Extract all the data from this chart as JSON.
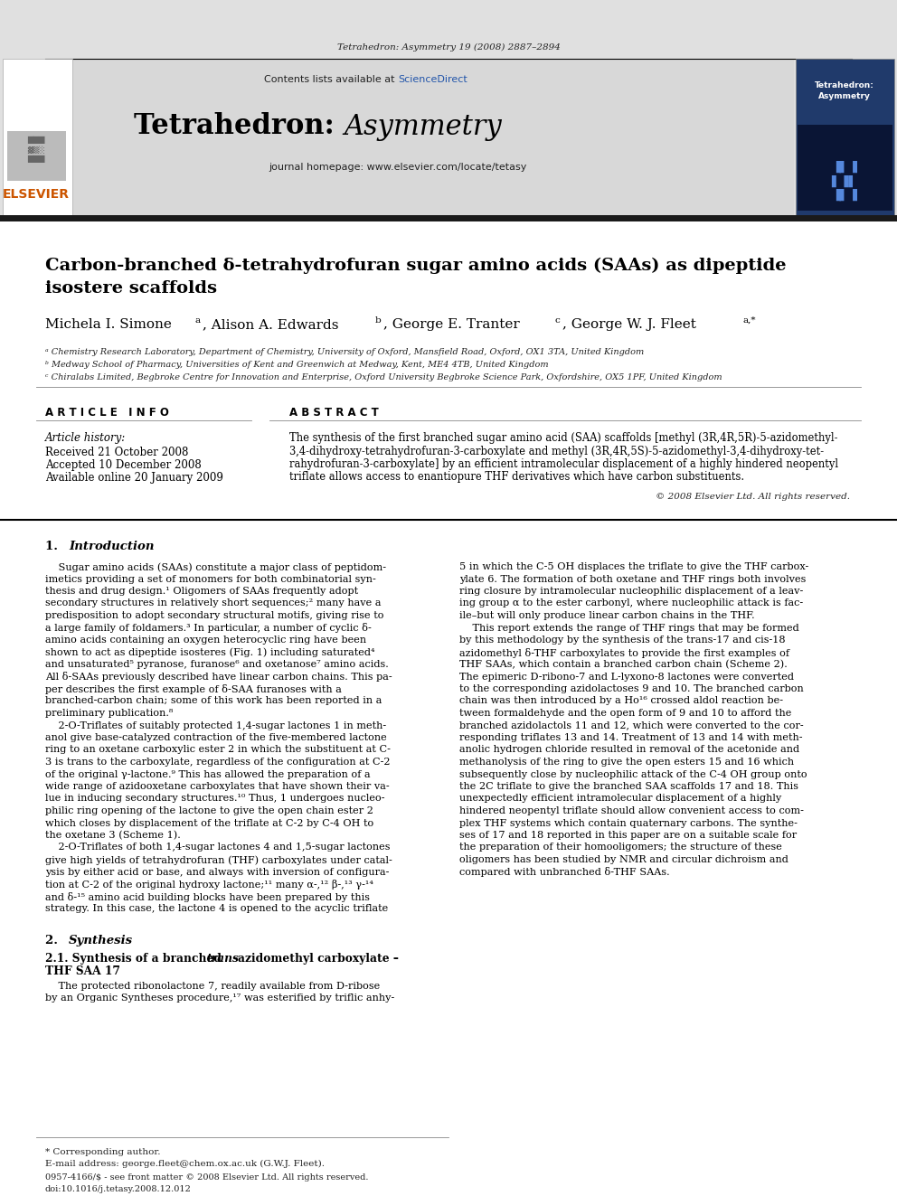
{
  "page_bg": "#ffffff",
  "header_issue": "Tetrahedron: Asymmetry 19 (2008) 2887–2894",
  "contents_text": "Contents lists available at ",
  "sciencedirect_text": "ScienceDirect",
  "journal_homepage": "journal homepage: www.elsevier.com/locate/tetasy",
  "article_title_line1": "Carbon-branched δ-tetrahydrofuran sugar amino acids (SAAs) as dipeptide",
  "article_title_line2": "isostere scaffolds",
  "affil_a": "ᵃ Chemistry Research Laboratory, Department of Chemistry, University of Oxford, Mansfield Road, Oxford, OX1 3TA, United Kingdom",
  "affil_b": "ᵇ Medway School of Pharmacy, Universities of Kent and Greenwich at Medway, Kent, ME4 4TB, United Kingdom",
  "affil_c": "ᶜ Chiralabs Limited, Begbroke Centre for Innovation and Enterprise, Oxford University Begbroke Science Park, Oxfordshire, OX5 1PF, United Kingdom",
  "article_info_label": "A R T I C L E   I N F O",
  "abstract_label": "A B S T R A C T",
  "article_history_label": "Article history:",
  "received": "Received 21 October 2008",
  "accepted": "Accepted 10 December 2008",
  "available": "Available online 20 January 2009",
  "copyright": "© 2008 Elsevier Ltd. All rights reserved.",
  "footer_issn": "0957-4166/$ - see front matter © 2008 Elsevier Ltd. All rights reserved.",
  "footer_doi": "doi:10.1016/j.tetasy.2008.12.012",
  "footnote_star": "* Corresponding author.",
  "footnote_email": "E-mail address: george.fleet@chem.ox.ac.uk (G.W.J. Fleet).",
  "colors": {
    "black": "#000000",
    "dark_gray": "#222222",
    "light_gray": "#e8e8e8",
    "header_bg": "#e0e0e0",
    "blue_link": "#2255aa",
    "header_bar_bg": "#d8d8d8",
    "thick_bar": "#1a1a1a",
    "elsevier_text_color": "#cc5500"
  },
  "left_col_lines": [
    "    Sugar amino acids (SAAs) constitute a major class of peptidom-",
    "imetics providing a set of monomers for both combinatorial syn-",
    "thesis and drug design.¹ Oligomers of SAAs frequently adopt",
    "secondary structures in relatively short sequences;² many have a",
    "predisposition to adopt secondary structural motifs, giving rise to",
    "a large family of foldamers.³ In particular, a number of cyclic δ-",
    "amino acids containing an oxygen heterocyclic ring have been",
    "shown to act as dipeptide isosteres (Fig. 1) including saturated⁴",
    "and unsaturated⁵ pyranose, furanose⁶ and oxetanose⁷ amino acids.",
    "All δ-SAAs previously described have linear carbon chains. This pa-",
    "per describes the first example of δ-SAA furanoses with a",
    "branched-carbon chain; some of this work has been reported in a",
    "preliminary publication.⁸",
    "    2-O-Triflates of suitably protected 1,4-sugar lactones 1 in meth-",
    "anol give base-catalyzed contraction of the five-membered lactone",
    "ring to an oxetane carboxylic ester 2 in which the substituent at C-",
    "3 is trans to the carboxylate, regardless of the configuration at C-2",
    "of the original γ-lactone.⁹ This has allowed the preparation of a",
    "wide range of azidooxetane carboxylates that have shown their va-",
    "lue in inducing secondary structures.¹⁰ Thus, 1 undergoes nucleo-"
  ],
  "left_col_lines2": [
    "philic ring opening of the lactone to give the open chain ester 2",
    "which closes by displacement of the triflate at C-2 by C-4 OH to",
    "the oxetane 3 (Scheme 1).",
    "    2-O-Triflates of both 1,4-sugar lactones 4 and 1,5-sugar lactones",
    "give high yields of tetrahydrofuran (THF) carboxylates under catal-",
    "ysis by either acid or base, and always with inversion of configura-",
    "tion at C-2 of the original hydroxy lactone;¹¹ many α-,¹² β-,¹³ γ-¹⁴",
    "and δ-¹⁵ amino acid building blocks have been prepared by this",
    "strategy. In this case, the lactone 4 is opened to the acyclic triflate"
  ],
  "right_col_lines": [
    "5 in which the C-5 OH displaces the triflate to give the THF carbox-",
    "ylate 6. The formation of both oxetane and THF rings both involves",
    "ring closure by intramolecular nucleophilic displacement of a leav-",
    "ing group α to the ester carbonyl, where nucleophilic attack is fac-",
    "ile–but will only produce linear carbon chains in the THF.",
    "    This report extends the range of THF rings that may be formed",
    "by this methodology by the synthesis of the trans-17 and cis-18",
    "azidomethyl δ-THF carboxylates to provide the first examples of",
    "THF SAAs, which contain a branched carbon chain (Scheme 2).",
    "The epimeric D-ribono-7 and L-lyxono-8 lactones were converted",
    "to the corresponding azidolactoses 9 and 10. The branched carbon",
    "chain was then introduced by a Ho¹⁶ crossed aldol reaction be-",
    "tween formaldehyde and the open form of 9 and 10 to afford the",
    "branched azidolactols 11 and 12, which were converted to the cor-",
    "responding triflates 13 and 14. Treatment of 13 and 14 with meth-",
    "anolic hydrogen chloride resulted in removal of the acetonide and",
    "methanolysis of the ring to give the open esters 15 and 16 which",
    "subsequently close by nucleophilic attack of the C-4 OH group onto",
    "the 2C triflate to give the branched SAA scaffolds 17 and 18. This",
    "unexpectedly efficient intramolecular displacement of a highly"
  ],
  "right_col_lines2": [
    "hindered neopentyl triflate should allow convenient access to com-",
    "plex THF systems which contain quaternary carbons. The synthe-",
    "ses of 17 and 18 reported in this paper are on a suitable scale for",
    "the preparation of their homooligomers; the structure of these",
    "oligomers has been studied by NMR and circular dichroism and",
    "compared with unbranched δ-THF SAAs."
  ],
  "abstract_lines": [
    "The synthesis of the first branched sugar amino acid (SAA) scaffolds [methyl (3R,4R,5R)-5-azidomethyl-",
    "3,4-dihydroxy-tetrahydrofuran-3-carboxylate and methyl (3R,4R,5S)-5-azidomethyl-3,4-dihydroxy-tet-",
    "rahydrofuran-3-carboxylate] by an efficient intramolecular displacement of a highly hindered neopentyl",
    "triflate allows access to enantiopure THF derivatives which have carbon substituents."
  ]
}
